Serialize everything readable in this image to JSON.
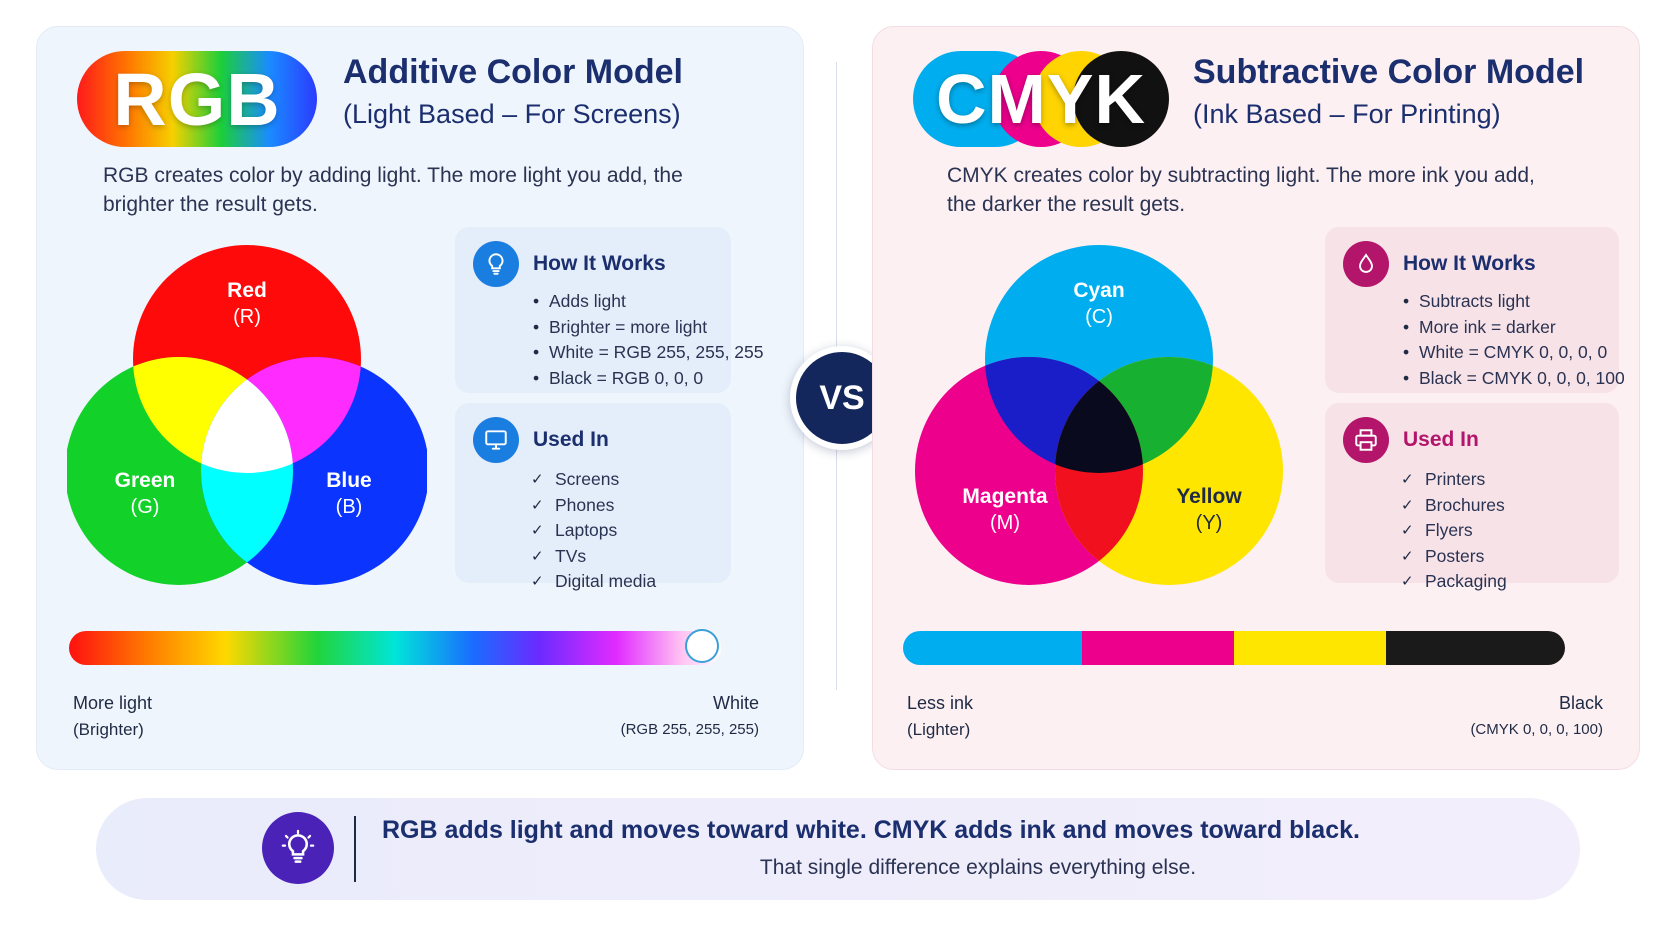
{
  "rgb": {
    "logo": "RGB",
    "title": "Additive Color Model",
    "subtitle": "(Light Based – For Screens)",
    "description": "RGB creates color by adding light. The more light you add, the brighter the result gets.",
    "venn": {
      "red": {
        "name": "Red",
        "code": "(R)",
        "color": "#ff0a0a"
      },
      "green": {
        "name": "Green",
        "code": "(G)",
        "color": "#12d22a"
      },
      "blue": {
        "name": "Blue",
        "code": "(B)",
        "color": "#0b35ff"
      }
    },
    "how": {
      "title": "How It Works",
      "icon": "lightbulb-icon",
      "items": [
        "Adds light",
        "Brighter = more light",
        "White = RGB 255, 255, 255",
        "Black = RGB 0, 0, 0"
      ]
    },
    "used": {
      "title": "Used In",
      "icon": "monitor-icon",
      "items": [
        "Screens",
        "Phones",
        "Laptops",
        "TVs",
        "Digital media"
      ]
    },
    "scale": {
      "left_label": "More light",
      "left_sub": "(Brighter)",
      "right_label": "White",
      "right_sub": "(RGB 255, 255, 255)"
    }
  },
  "vs": "VS",
  "cmyk": {
    "logo": "CMYK",
    "title": "Subtractive Color Model",
    "subtitle": "(Ink Based – For Printing)",
    "description": "CMYK creates color by subtracting light. The more ink you add, the darker the result gets.",
    "venn": {
      "cyan": {
        "name": "Cyan",
        "code": "(C)",
        "color": "#00aeef"
      },
      "magenta": {
        "name": "Magenta",
        "code": "(M)",
        "color": "#ec008c"
      },
      "yellow": {
        "name": "Yellow",
        "code": "(Y)",
        "color": "#ffe600"
      }
    },
    "how": {
      "title": "How It Works",
      "icon": "ink-drop-icon",
      "items": [
        "Subtracts light",
        "More ink = darker",
        "White = CMYK 0, 0, 0, 0",
        "Black = CMYK 0, 0, 0, 100"
      ]
    },
    "used": {
      "title": "Used In",
      "icon": "printer-icon",
      "items": [
        "Printers",
        "Brochures",
        "Flyers",
        "Posters",
        "Packaging"
      ]
    },
    "scale": {
      "left_label": "Less ink",
      "left_sub": "(Lighter)",
      "right_label": "Black",
      "right_sub": "(CMYK 0, 0, 0, 100)",
      "segments": [
        "#00aeef",
        "#ec008c",
        "#ffe600",
        "#1a1a1a"
      ]
    }
  },
  "footer": {
    "main": "RGB adds light and moves toward white. CMYK adds ink and moves toward black.",
    "sub": "That single difference explains everything else.",
    "icon": "lightbulb-icon"
  }
}
